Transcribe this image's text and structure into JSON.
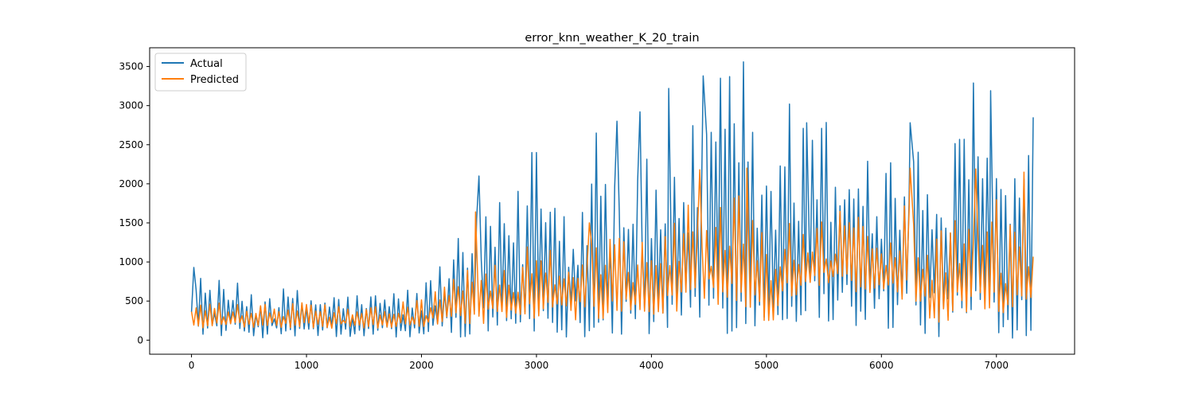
{
  "chart_data": {
    "type": "line",
    "title": "error_knn_weather_K_20_train",
    "xlabel": "",
    "ylabel": "",
    "xlim": [
      -364,
      7680
    ],
    "ylim": [
      -180,
      3740
    ],
    "x_ticks": [
      0,
      1000,
      2000,
      3000,
      4000,
      5000,
      6000,
      7000
    ],
    "y_ticks": [
      0,
      500,
      1000,
      1500,
      2000,
      2500,
      3000,
      3500
    ],
    "grid": false,
    "legend_position": "upper left",
    "n_points": 7320,
    "sample_every": 20,
    "series": [
      {
        "name": "Actual",
        "color": "#1f77b4",
        "x_start": 0,
        "x_step": 20,
        "band_x": [
          0,
          500,
          1000,
          1500,
          2000,
          2200,
          2500,
          2800,
          3000,
          3300,
          3500,
          3700,
          4000,
          4050,
          4300,
          4500,
          4800,
          5000,
          5050,
          5200,
          5500,
          5800,
          6000,
          6200,
          6500,
          6550,
          6800,
          7000,
          7050,
          7200,
          7320
        ],
        "band_low": [
          60,
          30,
          30,
          20,
          30,
          40,
          40,
          50,
          40,
          40,
          40,
          30,
          30,
          30,
          60,
          80,
          80,
          90,
          100,
          200,
          180,
          150,
          120,
          100,
          20,
          20,
          80,
          120,
          0,
          40,
          0
        ],
        "band_high": [
          850,
          700,
          650,
          600,
          700,
          1100,
          1600,
          1900,
          2200,
          2000,
          2300,
          2500,
          2300,
          2000,
          2700,
          2900,
          3000,
          2500,
          2200,
          2700,
          2900,
          2700,
          2400,
          2600,
          2300,
          2400,
          2900,
          2800,
          2200,
          2400,
          2800
        ],
        "peaks": [
          {
            "x": 20,
            "y": 930
          },
          {
            "x": 2500,
            "y": 2100
          },
          {
            "x": 2960,
            "y": 2400
          },
          {
            "x": 3000,
            "y": 2400
          },
          {
            "x": 3520,
            "y": 2650
          },
          {
            "x": 3700,
            "y": 2800
          },
          {
            "x": 3900,
            "y": 2920
          },
          {
            "x": 4150,
            "y": 3220
          },
          {
            "x": 4450,
            "y": 3380
          },
          {
            "x": 4600,
            "y": 3350
          },
          {
            "x": 4680,
            "y": 3370
          },
          {
            "x": 4800,
            "y": 3560
          },
          {
            "x": 5200,
            "y": 3020
          },
          {
            "x": 5350,
            "y": 2780
          },
          {
            "x": 6250,
            "y": 2780
          },
          {
            "x": 6800,
            "y": 3290
          },
          {
            "x": 6950,
            "y": 3190
          },
          {
            "x": 7320,
            "y": 2850
          }
        ]
      },
      {
        "name": "Predicted",
        "color": "#ff7f0e",
        "x_start": 0,
        "x_step": 20,
        "band_x": [
          0,
          500,
          1000,
          1500,
          2000,
          2200,
          2500,
          2800,
          3000,
          3300,
          3500,
          3700,
          4000,
          4050,
          4300,
          4500,
          4800,
          5000,
          5050,
          5200,
          5500,
          5800,
          6000,
          6200,
          6500,
          6550,
          6800,
          7000,
          7050,
          7200,
          7320
        ],
        "band_low": [
          150,
          150,
          150,
          150,
          150,
          200,
          200,
          300,
          250,
          250,
          250,
          250,
          250,
          250,
          400,
          450,
          450,
          200,
          200,
          500,
          600,
          600,
          500,
          500,
          200,
          200,
          400,
          400,
          250,
          300,
          550
        ],
        "band_high": [
          500,
          450,
          500,
          400,
          550,
          700,
          1000,
          1100,
          1300,
          1200,
          1300,
          1500,
          1200,
          1300,
          1800,
          1800,
          1900,
          1300,
          1100,
          1700,
          1700,
          1600,
          1500,
          1800,
          1500,
          1500,
          2000,
          1900,
          1300,
          1700,
          1300
        ],
        "peaks": [
          {
            "x": 2470,
            "y": 1640
          },
          {
            "x": 3460,
            "y": 1500
          },
          {
            "x": 4420,
            "y": 2180
          },
          {
            "x": 4830,
            "y": 2200
          },
          {
            "x": 6250,
            "y": 2200
          },
          {
            "x": 6820,
            "y": 2190
          },
          {
            "x": 7240,
            "y": 2150
          }
        ]
      }
    ]
  }
}
